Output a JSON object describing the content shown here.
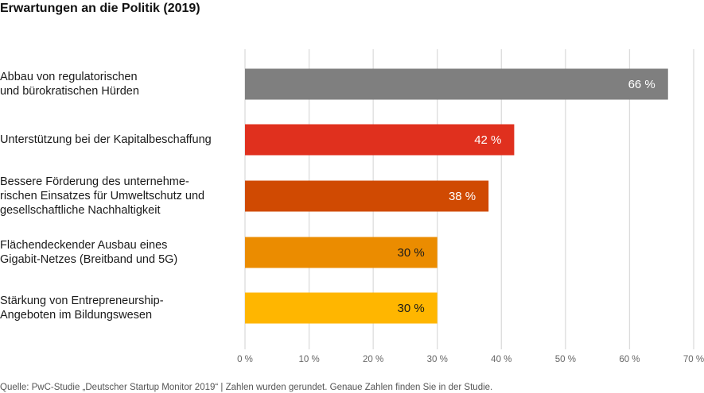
{
  "title": "Erwartungen an die Politik (2019)",
  "source": "Quelle: PwC-Studie „Deutscher Startup Monitor 2019“ | Zahlen wurden gerundet. Genaue Zahlen finden Sie in der Studie.",
  "chart_data": {
    "type": "bar",
    "orientation": "horizontal",
    "title": "Erwartungen an die Politik (2019)",
    "categories": [
      "Abbau von regulatorischen\nund bürokratischen Hürden",
      "Unterstützung bei der Kapitalbeschaffung",
      "Bessere Förderung des unternehme-\nrischen Einsatzes für Umweltschutz und\ngesellschaftliche Nachhaltigkeit",
      "Flächendeckender Ausbau eines\nGigabit-Netzes (Breitband und 5G)",
      "Stärkung von Entrepreneurship-\nAngeboten im Bildungswesen"
    ],
    "values": [
      66,
      42,
      38,
      30,
      30
    ],
    "value_labels": [
      "66 %",
      "42 %",
      "38 %",
      "30 %",
      "30 %"
    ],
    "colors": [
      "#7f7f7f",
      "#e0301e",
      "#d04a02",
      "#eb8c00",
      "#ffb600"
    ],
    "label_colors": [
      "#ffffff",
      "#ffffff",
      "#ffffff",
      "#1a1a1a",
      "#1a1a1a"
    ],
    "xlim": [
      0,
      70
    ],
    "xticks": [
      0,
      10,
      20,
      30,
      40,
      50,
      60,
      70
    ],
    "xtick_labels": [
      "0 %",
      "10 %",
      "20 %",
      "30 %",
      "40 %",
      "50 %",
      "60 %",
      "70 %"
    ],
    "grid": true,
    "xlabel": "",
    "ylabel": ""
  }
}
